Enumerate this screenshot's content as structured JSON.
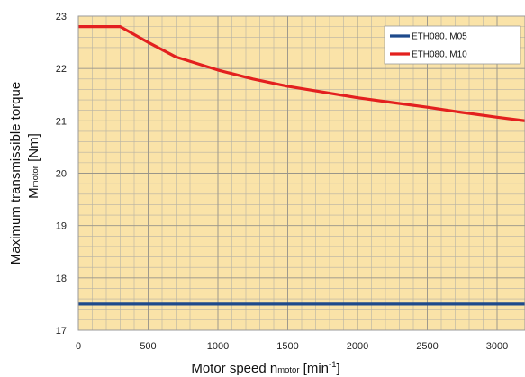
{
  "chart_data": {
    "type": "line",
    "xlabel": {
      "main": "Motor speed n",
      "sub": "motor",
      "unit_open": " [min",
      "unit_sup": "-1",
      "unit_close": "]"
    },
    "ylabel": {
      "line1": "Maximum transmissible torque",
      "main": "M",
      "sub": "motor",
      "unit": " [Nm]"
    },
    "xlim": [
      0,
      3200
    ],
    "ylim": [
      17,
      23
    ],
    "x_ticks": [
      0,
      500,
      1000,
      1500,
      2000,
      2500,
      3000
    ],
    "y_ticks": [
      17,
      18,
      19,
      20,
      21,
      22,
      23
    ],
    "x_minor_step": 100,
    "y_minor_step": 0.2,
    "grid": true,
    "legend_position": "top-right",
    "colors": {
      "background": "#fae3a8",
      "grid": "#b6b2a4",
      "frame": "#9a9a9a"
    },
    "series": [
      {
        "name": "ETH080, M05",
        "color": "#1e4a8c",
        "x": [
          0,
          3200
        ],
        "y": [
          17.5,
          17.5
        ]
      },
      {
        "name": "ETH080, M10",
        "color": "#e3201f",
        "x": [
          0,
          300,
          500,
          700,
          1000,
          1250,
          1500,
          1750,
          2000,
          2250,
          2500,
          2750,
          3000,
          3200
        ],
        "y": [
          22.8,
          22.8,
          22.5,
          22.22,
          21.97,
          21.8,
          21.66,
          21.55,
          21.44,
          21.35,
          21.26,
          21.16,
          21.07,
          21.0
        ]
      }
    ]
  }
}
